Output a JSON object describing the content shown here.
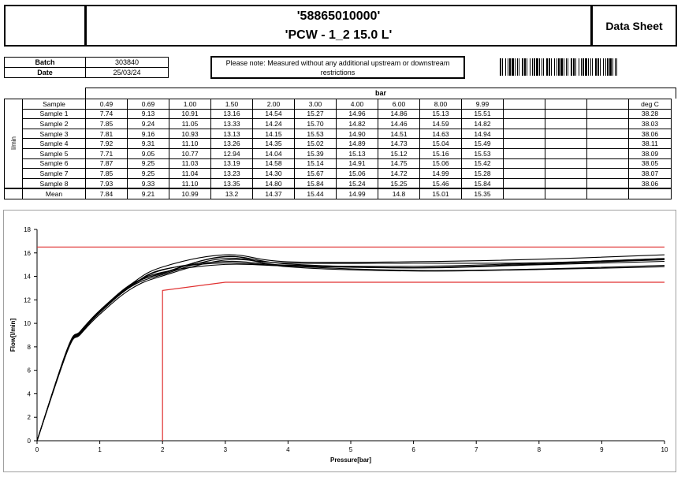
{
  "header": {
    "part_number": "'58865010000'",
    "product": "'PCW - 1_2 15.0 L'",
    "doc_type": "Data Sheet"
  },
  "meta": {
    "batch_label": "Batch",
    "batch_value": "303840",
    "date_label": "Date",
    "date_value": "25/03/24"
  },
  "note": "Please note: Measured without any additional upstream or downstream restrictions",
  "table": {
    "pressure_unit": "bar",
    "flow_unit": "l/min",
    "sample_header": "Sample",
    "temp_header": "deg C",
    "pressures": [
      "0.49",
      "0.69",
      "1.00",
      "1.50",
      "2.00",
      "3.00",
      "4.00",
      "6.00",
      "8.00",
      "9.99"
    ],
    "rows": [
      {
        "label": "Sample 1",
        "values": [
          "7.74",
          "9.13",
          "10.91",
          "13.16",
          "14.54",
          "15.27",
          "14.96",
          "14.86",
          "15.13",
          "15.51"
        ],
        "temp": "38.28"
      },
      {
        "label": "Sample 2",
        "values": [
          "7.85",
          "9.24",
          "11.05",
          "13.33",
          "14.24",
          "15.70",
          "14.82",
          "14.46",
          "14.59",
          "14.82"
        ],
        "temp": "38.03"
      },
      {
        "label": "Sample 3",
        "values": [
          "7.81",
          "9.16",
          "10.93",
          "13.13",
          "14.15",
          "15.53",
          "14.90",
          "14.51",
          "14.63",
          "14.94"
        ],
        "temp": "38.06"
      },
      {
        "label": "Sample 4",
        "values": [
          "7.92",
          "9.31",
          "11.10",
          "13.26",
          "14.35",
          "15.02",
          "14.89",
          "14.73",
          "15.04",
          "15.49"
        ],
        "temp": "38.11"
      },
      {
        "label": "Sample 5",
        "values": [
          "7.71",
          "9.05",
          "10.77",
          "12.94",
          "14.04",
          "15.39",
          "15.13",
          "15.12",
          "15.16",
          "15.53"
        ],
        "temp": "38.09"
      },
      {
        "label": "Sample 6",
        "values": [
          "7.87",
          "9.25",
          "11.03",
          "13.19",
          "14.58",
          "15.14",
          "14.91",
          "14.75",
          "15.06",
          "15.42"
        ],
        "temp": "38.05"
      },
      {
        "label": "Sample 7",
        "values": [
          "7.85",
          "9.25",
          "11.04",
          "13.23",
          "14.30",
          "15.67",
          "15.06",
          "14.72",
          "14.99",
          "15.28"
        ],
        "temp": "38.07"
      },
      {
        "label": "Sample 8",
        "values": [
          "7.93",
          "9.33",
          "11.10",
          "13.35",
          "14.80",
          "15.84",
          "15.24",
          "15.25",
          "15.46",
          "15.84"
        ],
        "temp": "38.06"
      }
    ],
    "mean": {
      "label": "Mean",
      "values": [
        "7.84",
        "9.21",
        "10.99",
        "13.2",
        "14.37",
        "15.44",
        "14.99",
        "14.8",
        "15.01",
        "15.35"
      ]
    }
  },
  "chart_data": {
    "type": "line",
    "xlabel": "Pressure[bar]",
    "ylabel": "Flow[l/min]",
    "xlim": [
      0,
      10
    ],
    "ylim": [
      0,
      18
    ],
    "xticks": [
      "0",
      "1",
      "2",
      "3",
      "4",
      "5",
      "6",
      "7",
      "8",
      "9",
      "10"
    ],
    "yticks": [
      "0",
      "2",
      "4",
      "6",
      "8",
      "10",
      "12",
      "14",
      "16",
      "18"
    ],
    "grid": false,
    "series": [
      {
        "x": [
          0,
          0.49,
          0.69,
          1.0,
          1.5,
          2.0,
          3.0,
          4.0,
          6.0,
          8.0,
          10.0
        ],
        "y": [
          0,
          7.74,
          9.13,
          10.91,
          13.16,
          14.54,
          15.27,
          14.96,
          14.86,
          15.13,
          15.51
        ]
      },
      {
        "x": [
          0,
          0.49,
          0.69,
          1.0,
          1.5,
          2.0,
          3.0,
          4.0,
          6.0,
          8.0,
          10.0
        ],
        "y": [
          0,
          7.85,
          9.24,
          11.05,
          13.33,
          14.24,
          15.7,
          14.82,
          14.46,
          14.59,
          14.82
        ]
      },
      {
        "x": [
          0,
          0.49,
          0.69,
          1.0,
          1.5,
          2.0,
          3.0,
          4.0,
          6.0,
          8.0,
          10.0
        ],
        "y": [
          0,
          7.81,
          9.16,
          10.93,
          13.13,
          14.15,
          15.53,
          14.9,
          14.51,
          14.63,
          14.94
        ]
      },
      {
        "x": [
          0,
          0.49,
          0.69,
          1.0,
          1.5,
          2.0,
          3.0,
          4.0,
          6.0,
          8.0,
          10.0
        ],
        "y": [
          0,
          7.92,
          9.31,
          11.1,
          13.26,
          14.35,
          15.02,
          14.89,
          14.73,
          15.04,
          15.49
        ]
      },
      {
        "x": [
          0,
          0.49,
          0.69,
          1.0,
          1.5,
          2.0,
          3.0,
          4.0,
          6.0,
          8.0,
          10.0
        ],
        "y": [
          0,
          7.71,
          9.05,
          10.77,
          12.94,
          14.04,
          15.39,
          15.13,
          15.12,
          15.16,
          15.53
        ]
      },
      {
        "x": [
          0,
          0.49,
          0.69,
          1.0,
          1.5,
          2.0,
          3.0,
          4.0,
          6.0,
          8.0,
          10.0
        ],
        "y": [
          0,
          7.87,
          9.25,
          11.03,
          13.19,
          14.58,
          15.14,
          14.91,
          14.75,
          15.06,
          15.42
        ]
      },
      {
        "x": [
          0,
          0.49,
          0.69,
          1.0,
          1.5,
          2.0,
          3.0,
          4.0,
          6.0,
          8.0,
          10.0
        ],
        "y": [
          0,
          7.85,
          9.25,
          11.04,
          13.23,
          14.3,
          15.67,
          15.06,
          14.72,
          14.99,
          15.28
        ]
      },
      {
        "x": [
          0,
          0.49,
          0.69,
          1.0,
          1.5,
          2.0,
          3.0,
          4.0,
          6.0,
          8.0,
          10.0
        ],
        "y": [
          0,
          7.93,
          9.33,
          11.1,
          13.35,
          14.8,
          15.84,
          15.24,
          15.25,
          15.46,
          15.84
        ]
      }
    ],
    "limits": {
      "upper": {
        "x": [
          0,
          10
        ],
        "y": [
          16.5,
          16.5
        ],
        "color": "#e03030"
      },
      "lower": {
        "x": [
          2,
          2,
          3,
          10
        ],
        "y": [
          0,
          12.8,
          13.5,
          13.5
        ],
        "color": "#e03030"
      }
    },
    "series_color": "#000000"
  }
}
